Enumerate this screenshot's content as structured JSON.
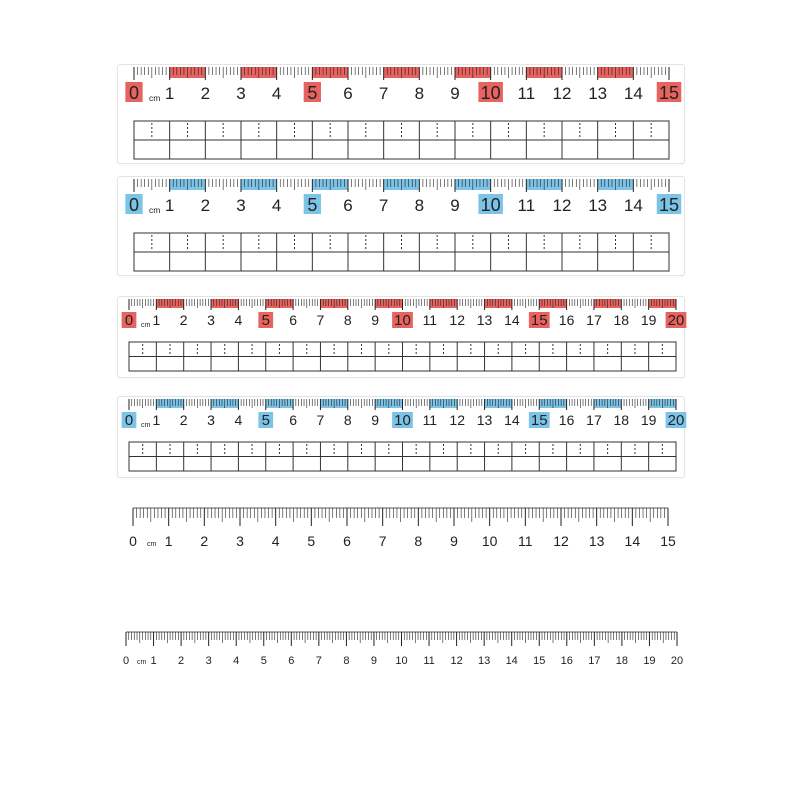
{
  "unit_label": "cm",
  "colors": {
    "red": "#e8635f",
    "blue": "#7cc3e8",
    "ink": "#222222",
    "grid": "#333333"
  },
  "rulers": [
    {
      "id": "ruler-15-red",
      "max_cm": 15,
      "style": "colored",
      "accent": "red",
      "highlight_numbers": [
        0,
        5,
        10,
        15
      ],
      "labels": [
        "0",
        "1",
        "2",
        "3",
        "4",
        "5",
        "6",
        "7",
        "8",
        "9",
        "10",
        "11",
        "12",
        "13",
        "14",
        "15"
      ],
      "writing_grid": {
        "columns": 15,
        "rows": 2
      }
    },
    {
      "id": "ruler-15-blue",
      "max_cm": 15,
      "style": "colored",
      "accent": "blue",
      "highlight_numbers": [
        0,
        5,
        10,
        15
      ],
      "labels": [
        "0",
        "1",
        "2",
        "3",
        "4",
        "5",
        "6",
        "7",
        "8",
        "9",
        "10",
        "11",
        "12",
        "13",
        "14",
        "15"
      ],
      "writing_grid": {
        "columns": 15,
        "rows": 2
      }
    },
    {
      "id": "ruler-20-red",
      "max_cm": 20,
      "style": "colored",
      "accent": "red",
      "highlight_numbers": [
        0,
        5,
        10,
        15,
        20
      ],
      "labels": [
        "0",
        "1",
        "2",
        "3",
        "4",
        "5",
        "6",
        "7",
        "8",
        "9",
        "10",
        "11",
        "12",
        "13",
        "14",
        "15",
        "16",
        "17",
        "18",
        "19",
        "20"
      ],
      "writing_grid": {
        "columns": 20,
        "rows": 2
      }
    },
    {
      "id": "ruler-20-blue",
      "max_cm": 20,
      "style": "colored",
      "accent": "blue",
      "highlight_numbers": [
        0,
        5,
        10,
        15,
        20
      ],
      "labels": [
        "0",
        "1",
        "2",
        "3",
        "4",
        "5",
        "6",
        "7",
        "8",
        "9",
        "10",
        "11",
        "12",
        "13",
        "14",
        "15",
        "16",
        "17",
        "18",
        "19",
        "20"
      ],
      "writing_grid": {
        "columns": 20,
        "rows": 2
      }
    },
    {
      "id": "ruler-15-plain",
      "max_cm": 15,
      "style": "plain",
      "labels": [
        "0",
        "1",
        "2",
        "3",
        "4",
        "5",
        "6",
        "7",
        "8",
        "9",
        "10",
        "11",
        "12",
        "13",
        "14",
        "15"
      ]
    },
    {
      "id": "ruler-20-plain",
      "max_cm": 20,
      "style": "plain",
      "labels": [
        "0",
        "1",
        "2",
        "3",
        "4",
        "5",
        "6",
        "7",
        "8",
        "9",
        "10",
        "11",
        "12",
        "13",
        "14",
        "15",
        "16",
        "17",
        "18",
        "19",
        "20"
      ]
    }
  ]
}
